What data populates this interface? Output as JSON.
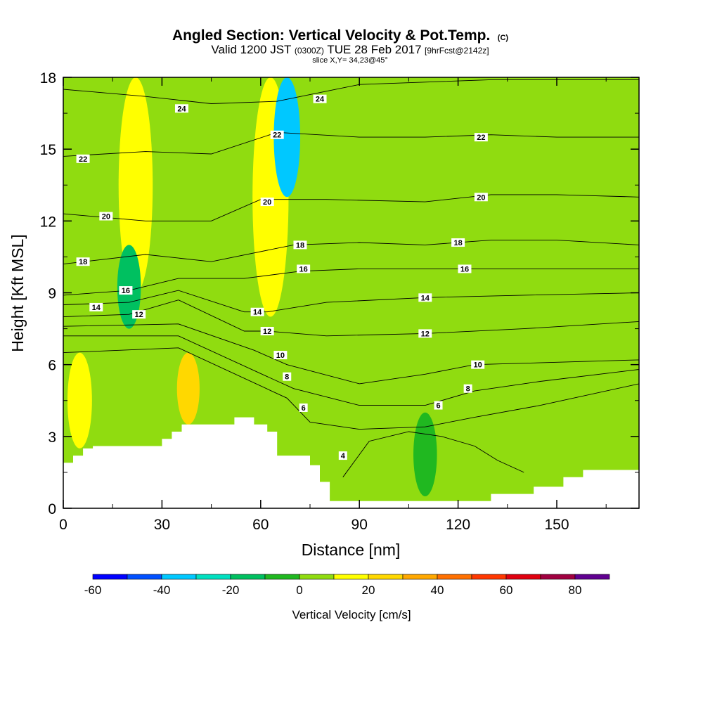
{
  "chart_data": {
    "type": "heatmap",
    "title": "Angled Section: Vertical Velocity & Pot.Temp.",
    "title_units": "(C)",
    "subtitle": {
      "valid_prefix": "Valid 1200 JST",
      "utc": "(0300Z)",
      "date": "TUE 28 Feb 2017",
      "forecast": "[9hrFcst@2142z]"
    },
    "slice_label": "slice X,Y= 34,23@45°",
    "xlabel": "Distance [nm]",
    "ylabel": "Height [Kft MSL]",
    "xlim": [
      0,
      175
    ],
    "ylim": [
      0,
      18
    ],
    "x_ticks": [
      "0",
      "30",
      "60",
      "90",
      "120",
      "150"
    ],
    "y_ticks": [
      "0",
      "3",
      "6",
      "9",
      "12",
      "15",
      "18"
    ],
    "colorbar": {
      "label": "Vertical Velocity [cm/s]",
      "levels": [
        -60,
        -50,
        -40,
        -30,
        -20,
        -10,
        0,
        10,
        20,
        30,
        40,
        50,
        60,
        70,
        80,
        90
      ],
      "tick_labels": [
        "-60",
        "-40",
        "-20",
        "0",
        "20",
        "40",
        "60",
        "80"
      ],
      "colors": [
        "#0000ff",
        "#0050ff",
        "#00c8ff",
        "#00e0c0",
        "#00c060",
        "#20b820",
        "#90dc10",
        "#ffff00",
        "#ffd800",
        "#ffa800",
        "#ff7000",
        "#ff3800",
        "#e00010",
        "#a00040",
        "#600090"
      ]
    },
    "background_velocity_class": "0 to 10",
    "velocity_features": [
      {
        "x": 22,
        "y_range": [
          9,
          18
        ],
        "class": "10 to 20"
      },
      {
        "x": 63,
        "y_range": [
          8,
          18
        ],
        "class": "10 to 20"
      },
      {
        "x": 68,
        "y_range": [
          13,
          18
        ],
        "class": "-40 to -30"
      },
      {
        "x": 20,
        "y_range": [
          7.5,
          11
        ],
        "class": "-20 to -10"
      },
      {
        "x": 5,
        "y_range": [
          2.5,
          6.5
        ],
        "class": "10 to 20"
      },
      {
        "x": 38,
        "y_range": [
          3.5,
          6.5
        ],
        "class": "20 to 30"
      },
      {
        "x": 110,
        "y_range": [
          0.5,
          4
        ],
        "class": "-10 to 0"
      }
    ],
    "theta_contours": [
      {
        "label": "4",
        "x": [
          85,
          93,
          105,
          115,
          125,
          132,
          140
        ],
        "y": [
          1.3,
          2.8,
          3.2,
          3.0,
          2.6,
          2.0,
          1.5
        ]
      },
      {
        "label": "6",
        "x": [
          0,
          35,
          68,
          75,
          90,
          110,
          125,
          145,
          175
        ],
        "y": [
          6.5,
          6.7,
          4.6,
          3.6,
          3.3,
          3.4,
          3.8,
          4.3,
          5.2
        ]
      },
      {
        "label": "8",
        "x": [
          0,
          35,
          62,
          70,
          90,
          110,
          125,
          145,
          175
        ],
        "y": [
          7.2,
          7.2,
          5.5,
          5.0,
          4.3,
          4.3,
          4.9,
          5.3,
          5.8
        ]
      },
      {
        "label": "10",
        "x": [
          0,
          35,
          58,
          68,
          90,
          110,
          125,
          150,
          175
        ],
        "y": [
          7.6,
          7.7,
          6.6,
          6.0,
          5.2,
          5.6,
          6.0,
          6.1,
          6.2
        ]
      },
      {
        "label": "12",
        "x": [
          0,
          20,
          35,
          55,
          62,
          80,
          110,
          140,
          175
        ],
        "y": [
          8.0,
          8.1,
          8.7,
          7.4,
          7.4,
          7.2,
          7.3,
          7.5,
          7.8
        ]
      },
      {
        "label": "14",
        "x": [
          0,
          20,
          35,
          55,
          62,
          80,
          110,
          140,
          175
        ],
        "y": [
          8.5,
          8.6,
          9.1,
          8.2,
          8.2,
          8.6,
          8.8,
          8.9,
          9.0
        ]
      },
      {
        "label": "16",
        "x": [
          0,
          20,
          35,
          55,
          72,
          90,
          110,
          140,
          175
        ],
        "y": [
          8.9,
          9.1,
          9.6,
          9.6,
          9.9,
          10.0,
          10.0,
          10.0,
          10.0
        ]
      },
      {
        "label": "18",
        "x": [
          0,
          25,
          45,
          70,
          90,
          110,
          130,
          150,
          175
        ],
        "y": [
          10.2,
          10.6,
          10.3,
          11.0,
          11.1,
          11.0,
          11.2,
          11.2,
          11.0
        ]
      },
      {
        "label": "20",
        "x": [
          0,
          25,
          45,
          60,
          80,
          110,
          130,
          150,
          175
        ],
        "y": [
          12.3,
          12.0,
          12.0,
          12.9,
          12.9,
          12.8,
          13.1,
          13.1,
          13.0
        ]
      },
      {
        "label": "22",
        "x": [
          0,
          25,
          45,
          65,
          90,
          110,
          130,
          150,
          175
        ],
        "y": [
          14.7,
          14.9,
          14.8,
          15.7,
          15.5,
          15.5,
          15.6,
          15.5,
          15.5
        ]
      },
      {
        "label": "24",
        "x": [
          0,
          25,
          45,
          65,
          90,
          110,
          130,
          150,
          175
        ],
        "y": [
          17.5,
          17.2,
          16.9,
          17.0,
          17.7,
          17.8,
          17.9,
          17.9,
          17.9
        ]
      }
    ],
    "contour_labels": [
      {
        "text": "24",
        "x": 36,
        "y": 16.7
      },
      {
        "text": "24",
        "x": 78,
        "y": 17.1
      },
      {
        "text": "22",
        "x": 6,
        "y": 14.6
      },
      {
        "text": "22",
        "x": 65,
        "y": 15.6
      },
      {
        "text": "22",
        "x": 127,
        "y": 15.5
      },
      {
        "text": "20",
        "x": 13,
        "y": 12.2
      },
      {
        "text": "20",
        "x": 62,
        "y": 12.8
      },
      {
        "text": "20",
        "x": 127,
        "y": 13.0
      },
      {
        "text": "18",
        "x": 6,
        "y": 10.3
      },
      {
        "text": "18",
        "x": 72,
        "y": 11.0
      },
      {
        "text": "18",
        "x": 120,
        "y": 11.1
      },
      {
        "text": "16",
        "x": 19,
        "y": 9.1
      },
      {
        "text": "16",
        "x": 73,
        "y": 10.0
      },
      {
        "text": "16",
        "x": 122,
        "y": 10.0
      },
      {
        "text": "14",
        "x": 10,
        "y": 8.4
      },
      {
        "text": "14",
        "x": 59,
        "y": 8.2
      },
      {
        "text": "14",
        "x": 110,
        "y": 8.8
      },
      {
        "text": "12",
        "x": 23,
        "y": 8.1
      },
      {
        "text": "12",
        "x": 62,
        "y": 7.4
      },
      {
        "text": "12",
        "x": 110,
        "y": 7.3
      },
      {
        "text": "10",
        "x": 66,
        "y": 6.4
      },
      {
        "text": "10",
        "x": 126,
        "y": 6.0
      },
      {
        "text": "8",
        "x": 68,
        "y": 5.5
      },
      {
        "text": "8",
        "x": 123,
        "y": 5.0
      },
      {
        "text": "6",
        "x": 73,
        "y": 4.2
      },
      {
        "text": "6",
        "x": 114,
        "y": 4.3
      },
      {
        "text": "4",
        "x": 85,
        "y": 2.2
      }
    ],
    "terrain": {
      "x": [
        0,
        3,
        3,
        6,
        6,
        9,
        9,
        30,
        30,
        33,
        33,
        36,
        36,
        52,
        52,
        58,
        58,
        62,
        62,
        65,
        65,
        75,
        75,
        78,
        78,
        81,
        81,
        130,
        130,
        143,
        143,
        152,
        152,
        158,
        158,
        175
      ],
      "y": [
        1.9,
        1.9,
        2.2,
        2.2,
        2.5,
        2.5,
        2.6,
        2.6,
        2.9,
        2.9,
        3.2,
        3.2,
        3.5,
        3.5,
        3.8,
        3.8,
        3.5,
        3.5,
        3.2,
        3.2,
        2.2,
        2.2,
        1.8,
        1.8,
        1.1,
        1.1,
        0.3,
        0.3,
        0.6,
        0.6,
        0.9,
        0.9,
        1.3,
        1.3,
        1.6,
        1.6
      ]
    }
  }
}
